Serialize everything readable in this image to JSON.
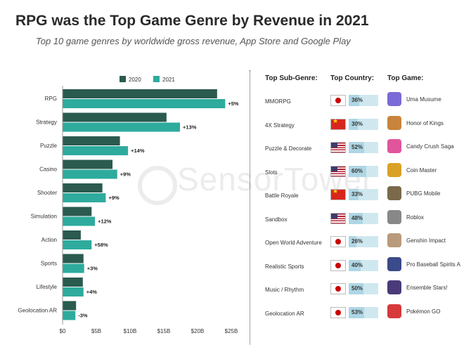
{
  "title": "RPG was the Top Game Genre by Revenue in 2021",
  "subtitle": "Top 10 game genres by worldwide gross revenue, App Store and Google Play",
  "watermark": "SensorTower",
  "colors": {
    "c2020": "#2b5a4f",
    "c2021": "#2eab9d",
    "bg": "#ffffff"
  },
  "chart_data": {
    "type": "bar",
    "orientation": "horizontal",
    "categories": [
      "RPG",
      "Strategy",
      "Puzzle",
      "Casino",
      "Shooter",
      "Simulation",
      "Action",
      "Sports",
      "Lifestyle",
      "Geolocation AR"
    ],
    "series": [
      {
        "name": "2020",
        "values": [
          22.9,
          15.4,
          8.5,
          7.4,
          5.9,
          4.3,
          2.7,
          3.1,
          3.0,
          2.0
        ]
      },
      {
        "name": "2021",
        "values": [
          24.1,
          17.4,
          9.7,
          8.1,
          6.4,
          4.8,
          4.3,
          3.2,
          3.1,
          1.9
        ]
      }
    ],
    "growth_labels": [
      "+5%",
      "+13%",
      "+14%",
      "+9%",
      "+9%",
      "+12%",
      "+58%",
      "+3%",
      "+4%",
      "-3%"
    ],
    "x_ticks": [
      "$0",
      "$5B",
      "$10B",
      "$15B",
      "$20B",
      "$25B"
    ],
    "xlim": [
      0,
      25
    ],
    "legend": [
      "2020",
      "2021"
    ],
    "legend_position": "top"
  },
  "table": {
    "headers": {
      "subgenre": "Top Sub-Genre:",
      "country": "Top Country:",
      "game": "Top Game:"
    },
    "rows": [
      {
        "subgenre": "MMORPG",
        "flag": "jp",
        "pct": "36%",
        "pct_value": 36,
        "game": "Uma Musume",
        "icon_color": "#7b6bd6"
      },
      {
        "subgenre": "4X Strategy",
        "flag": "cn",
        "pct": "30%",
        "pct_value": 30,
        "game": "Honor of Kings",
        "icon_color": "#c8843a"
      },
      {
        "subgenre": "Puzzle & Decorate",
        "flag": "us",
        "pct": "52%",
        "pct_value": 52,
        "game": "Candy Crush Saga",
        "icon_color": "#e0559b"
      },
      {
        "subgenre": "Slots",
        "flag": "us",
        "pct": "60%",
        "pct_value": 60,
        "game": "Coin Master",
        "icon_color": "#d9a227"
      },
      {
        "subgenre": "Battle Royale",
        "flag": "cn",
        "pct": "33%",
        "pct_value": 33,
        "game": "PUBG Mobile",
        "icon_color": "#7a6a4a"
      },
      {
        "subgenre": "Sandbox",
        "flag": "us",
        "pct": "48%",
        "pct_value": 48,
        "game": "Roblox",
        "icon_color": "#888888"
      },
      {
        "subgenre": "Open World Adventure",
        "flag": "jp",
        "pct": "26%",
        "pct_value": 26,
        "game": "Genshin Impact",
        "icon_color": "#b99a7a"
      },
      {
        "subgenre": "Realistic Sports",
        "flag": "jp",
        "pct": "40%",
        "pct_value": 40,
        "game": "Pro Baseball Spirits A",
        "icon_color": "#3a4a8a"
      },
      {
        "subgenre": "Music / Rhythm",
        "flag": "jp",
        "pct": "50%",
        "pct_value": 50,
        "game": "Ensemble Stars!",
        "icon_color": "#4a3a7a"
      },
      {
        "subgenre": "Geolocation AR",
        "flag": "jp",
        "pct": "53%",
        "pct_value": 53,
        "game": "Pokémon GO",
        "icon_color": "#d63a3a"
      }
    ]
  }
}
